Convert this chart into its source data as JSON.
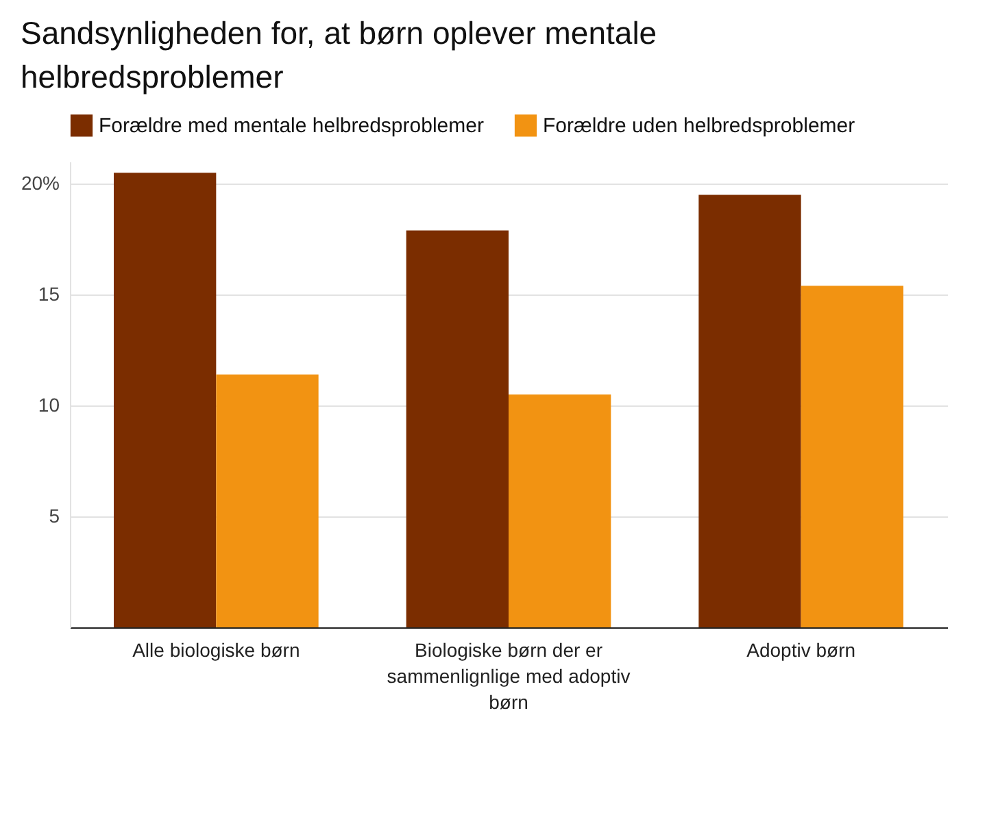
{
  "chart_data": {
    "type": "bar",
    "title": "Sandsynligheden for, at børn oplever mentale helbredsproblemer",
    "categories": [
      "Alle biologiske børn",
      "Biologiske børn der er sammenlignlige med adoptiv børn",
      "Adoptiv børn"
    ],
    "series": [
      {
        "name": "Forældre med mentale helbredsproblemer",
        "color": "#7b2d00",
        "values": [
          20.5,
          17.9,
          19.5
        ]
      },
      {
        "name": "Forældre uden helbredsproblemer",
        "color": "#f29312",
        "values": [
          11.4,
          10.5,
          15.4
        ]
      }
    ],
    "ylim": [
      0,
      21
    ],
    "yticks": [
      {
        "value": 0,
        "label": null
      },
      5,
      10,
      15,
      {
        "value": 20,
        "label": "20%"
      }
    ],
    "grid": "y",
    "legend": "top left"
  }
}
